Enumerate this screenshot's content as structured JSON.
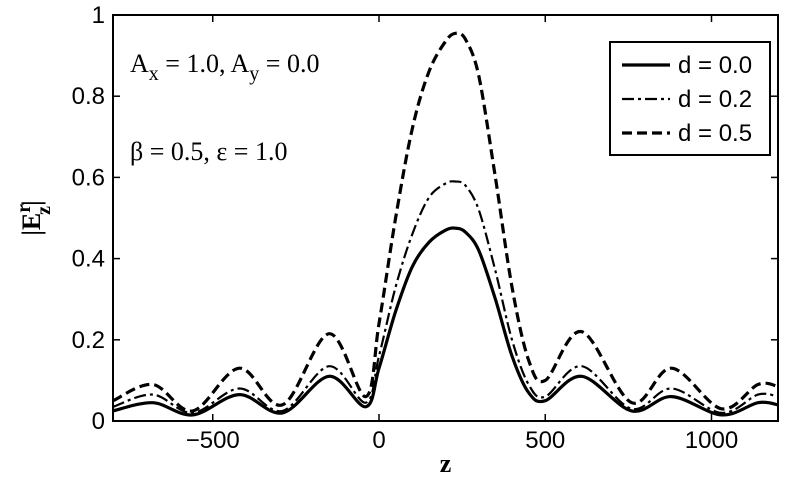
{
  "chart_data": {
    "type": "line",
    "xlabel": "z",
    "ylabel": {
      "base": "|E",
      "sup": "r",
      "sub": "z",
      "close": "|"
    },
    "xlim": [
      -800,
      1200
    ],
    "ylim": [
      0,
      1
    ],
    "xticks": [
      -500,
      0,
      500,
      1000
    ],
    "xtick_labels": [
      "−500",
      "0",
      "500",
      "1000"
    ],
    "yticks": [
      0,
      0.2,
      0.4,
      0.6,
      0.8,
      1
    ],
    "ytick_labels": [
      "0",
      "0.2",
      "0.4",
      "0.6",
      "0.8",
      "1"
    ],
    "grid": false,
    "legend_position": "top-right",
    "annotations": [
      {
        "parts": [
          {
            "t": "A"
          },
          {
            "t": "x",
            "sub": true
          },
          {
            "t": " = 1.0, A"
          },
          {
            "t": "y",
            "sub": true
          },
          {
            "t": " = 0.0"
          }
        ]
      },
      {
        "parts": [
          {
            "t": "β = 0.5, ε = 1.0"
          }
        ]
      }
    ],
    "series": [
      {
        "name": "d = 0.0",
        "style": "solid",
        "x": [
          -800,
          -680,
          -560,
          -420,
          -290,
          -150,
          -40,
          0,
          50,
          100,
          150,
          200,
          230,
          260,
          300,
          350,
          400,
          450,
          500,
          610,
          760,
          880,
          1030,
          1140,
          1200
        ],
        "y": [
          0.025,
          0.045,
          0.015,
          0.065,
          0.02,
          0.11,
          0.035,
          0.13,
          0.27,
          0.38,
          0.44,
          0.47,
          0.475,
          0.465,
          0.42,
          0.3,
          0.16,
          0.07,
          0.05,
          0.11,
          0.025,
          0.06,
          0.015,
          0.045,
          0.04
        ]
      },
      {
        "name": "d = 0.2",
        "style": "dashdot",
        "x": [
          -800,
          -680,
          -560,
          -420,
          -290,
          -150,
          -40,
          0,
          50,
          100,
          150,
          200,
          230,
          260,
          300,
          350,
          400,
          450,
          500,
          610,
          760,
          880,
          1030,
          1140,
          1200
        ],
        "y": [
          0.035,
          0.065,
          0.02,
          0.08,
          0.025,
          0.135,
          0.045,
          0.16,
          0.33,
          0.46,
          0.55,
          0.585,
          0.59,
          0.58,
          0.52,
          0.37,
          0.2,
          0.09,
          0.06,
          0.135,
          0.03,
          0.08,
          0.02,
          0.065,
          0.06
        ]
      },
      {
        "name": "d = 0.5",
        "style": "dashed",
        "x": [
          -800,
          -680,
          -560,
          -420,
          -290,
          -150,
          -40,
          0,
          50,
          100,
          150,
          200,
          230,
          260,
          300,
          350,
          400,
          450,
          500,
          610,
          760,
          880,
          1030,
          1140,
          1200
        ],
        "y": [
          0.05,
          0.09,
          0.025,
          0.13,
          0.04,
          0.215,
          0.06,
          0.24,
          0.5,
          0.72,
          0.86,
          0.935,
          0.955,
          0.94,
          0.85,
          0.6,
          0.33,
          0.15,
          0.1,
          0.22,
          0.045,
          0.13,
          0.03,
          0.09,
          0.085
        ]
      }
    ]
  }
}
